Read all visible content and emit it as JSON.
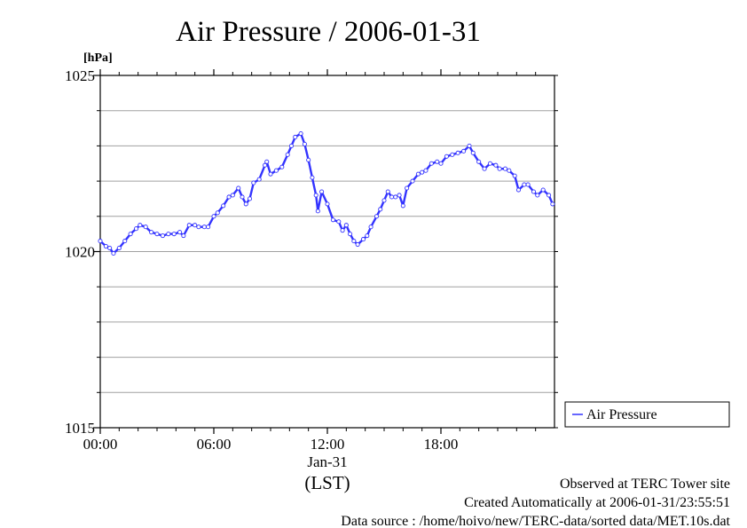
{
  "chart_data": {
    "type": "line",
    "title": "Air Pressure / 2006-01-31",
    "ylabel": "[hPa]",
    "xlabel": "(LST)",
    "x_date_label": "Jan-31",
    "ylim": [
      1015,
      1025
    ],
    "xlim": [
      0,
      24
    ],
    "y_ticks": [
      "1015",
      "1020",
      "1025"
    ],
    "y_minor_step": 1,
    "x_ticks": [
      "00:00",
      "06:00",
      "12:00",
      "18:00"
    ],
    "grid": true,
    "legend_position": "right",
    "series": [
      {
        "name": "Air Pressure",
        "color": "#3333ff",
        "x": [
          0.0,
          0.3,
          0.5,
          0.7,
          1.0,
          1.3,
          1.6,
          1.9,
          2.1,
          2.4,
          2.7,
          3.0,
          3.3,
          3.6,
          3.9,
          4.2,
          4.4,
          4.7,
          5.0,
          5.2,
          5.5,
          5.7,
          6.0,
          6.2,
          6.5,
          6.8,
          7.0,
          7.3,
          7.5,
          7.7,
          7.9,
          8.1,
          8.4,
          8.7,
          8.8,
          9.0,
          9.3,
          9.6,
          9.9,
          10.1,
          10.3,
          10.6,
          10.8,
          11.0,
          11.2,
          11.4,
          11.5,
          11.7,
          12.0,
          12.3,
          12.6,
          12.8,
          13.0,
          13.2,
          13.4,
          13.6,
          13.9,
          14.1,
          14.3,
          14.6,
          14.8,
          15.0,
          15.2,
          15.4,
          15.6,
          15.8,
          16.0,
          16.2,
          16.5,
          16.8,
          17.0,
          17.2,
          17.5,
          17.8,
          18.0,
          18.3,
          18.6,
          18.9,
          19.2,
          19.5,
          19.7,
          20.0,
          20.3,
          20.6,
          20.9,
          21.1,
          21.4,
          21.6,
          21.9,
          22.1,
          22.4,
          22.6,
          22.9,
          23.1,
          23.4,
          23.7,
          23.9
        ],
        "y": [
          1020.3,
          1020.15,
          1020.1,
          1019.95,
          1020.1,
          1020.3,
          1020.5,
          1020.65,
          1020.75,
          1020.7,
          1020.55,
          1020.5,
          1020.45,
          1020.5,
          1020.5,
          1020.55,
          1020.45,
          1020.75,
          1020.75,
          1020.7,
          1020.7,
          1020.7,
          1021.0,
          1021.1,
          1021.3,
          1021.55,
          1021.6,
          1021.8,
          1021.55,
          1021.35,
          1021.5,
          1021.95,
          1022.05,
          1022.45,
          1022.55,
          1022.2,
          1022.3,
          1022.4,
          1022.75,
          1023.0,
          1023.25,
          1023.35,
          1023.05,
          1022.6,
          1022.1,
          1021.6,
          1021.15,
          1021.7,
          1021.35,
          1020.9,
          1020.85,
          1020.6,
          1020.75,
          1020.5,
          1020.3,
          1020.2,
          1020.35,
          1020.45,
          1020.7,
          1021.0,
          1021.2,
          1021.45,
          1021.7,
          1021.55,
          1021.55,
          1021.6,
          1021.3,
          1021.8,
          1022.0,
          1022.2,
          1022.25,
          1022.3,
          1022.5,
          1022.55,
          1022.5,
          1022.7,
          1022.75,
          1022.8,
          1022.85,
          1023.0,
          1022.8,
          1022.55,
          1022.35,
          1022.5,
          1022.45,
          1022.35,
          1022.35,
          1022.3,
          1022.15,
          1021.75,
          1021.9,
          1021.9,
          1021.7,
          1021.6,
          1021.75,
          1021.6,
          1021.35
        ]
      }
    ]
  },
  "footer": {
    "line1": "Observed at TERC Tower site",
    "line2": "Created Automatically at 2006-01-31/23:55:51",
    "line3": "Data source : /home/hoivo/new/TERC-data/sorted  data/MET.10s.dat"
  }
}
